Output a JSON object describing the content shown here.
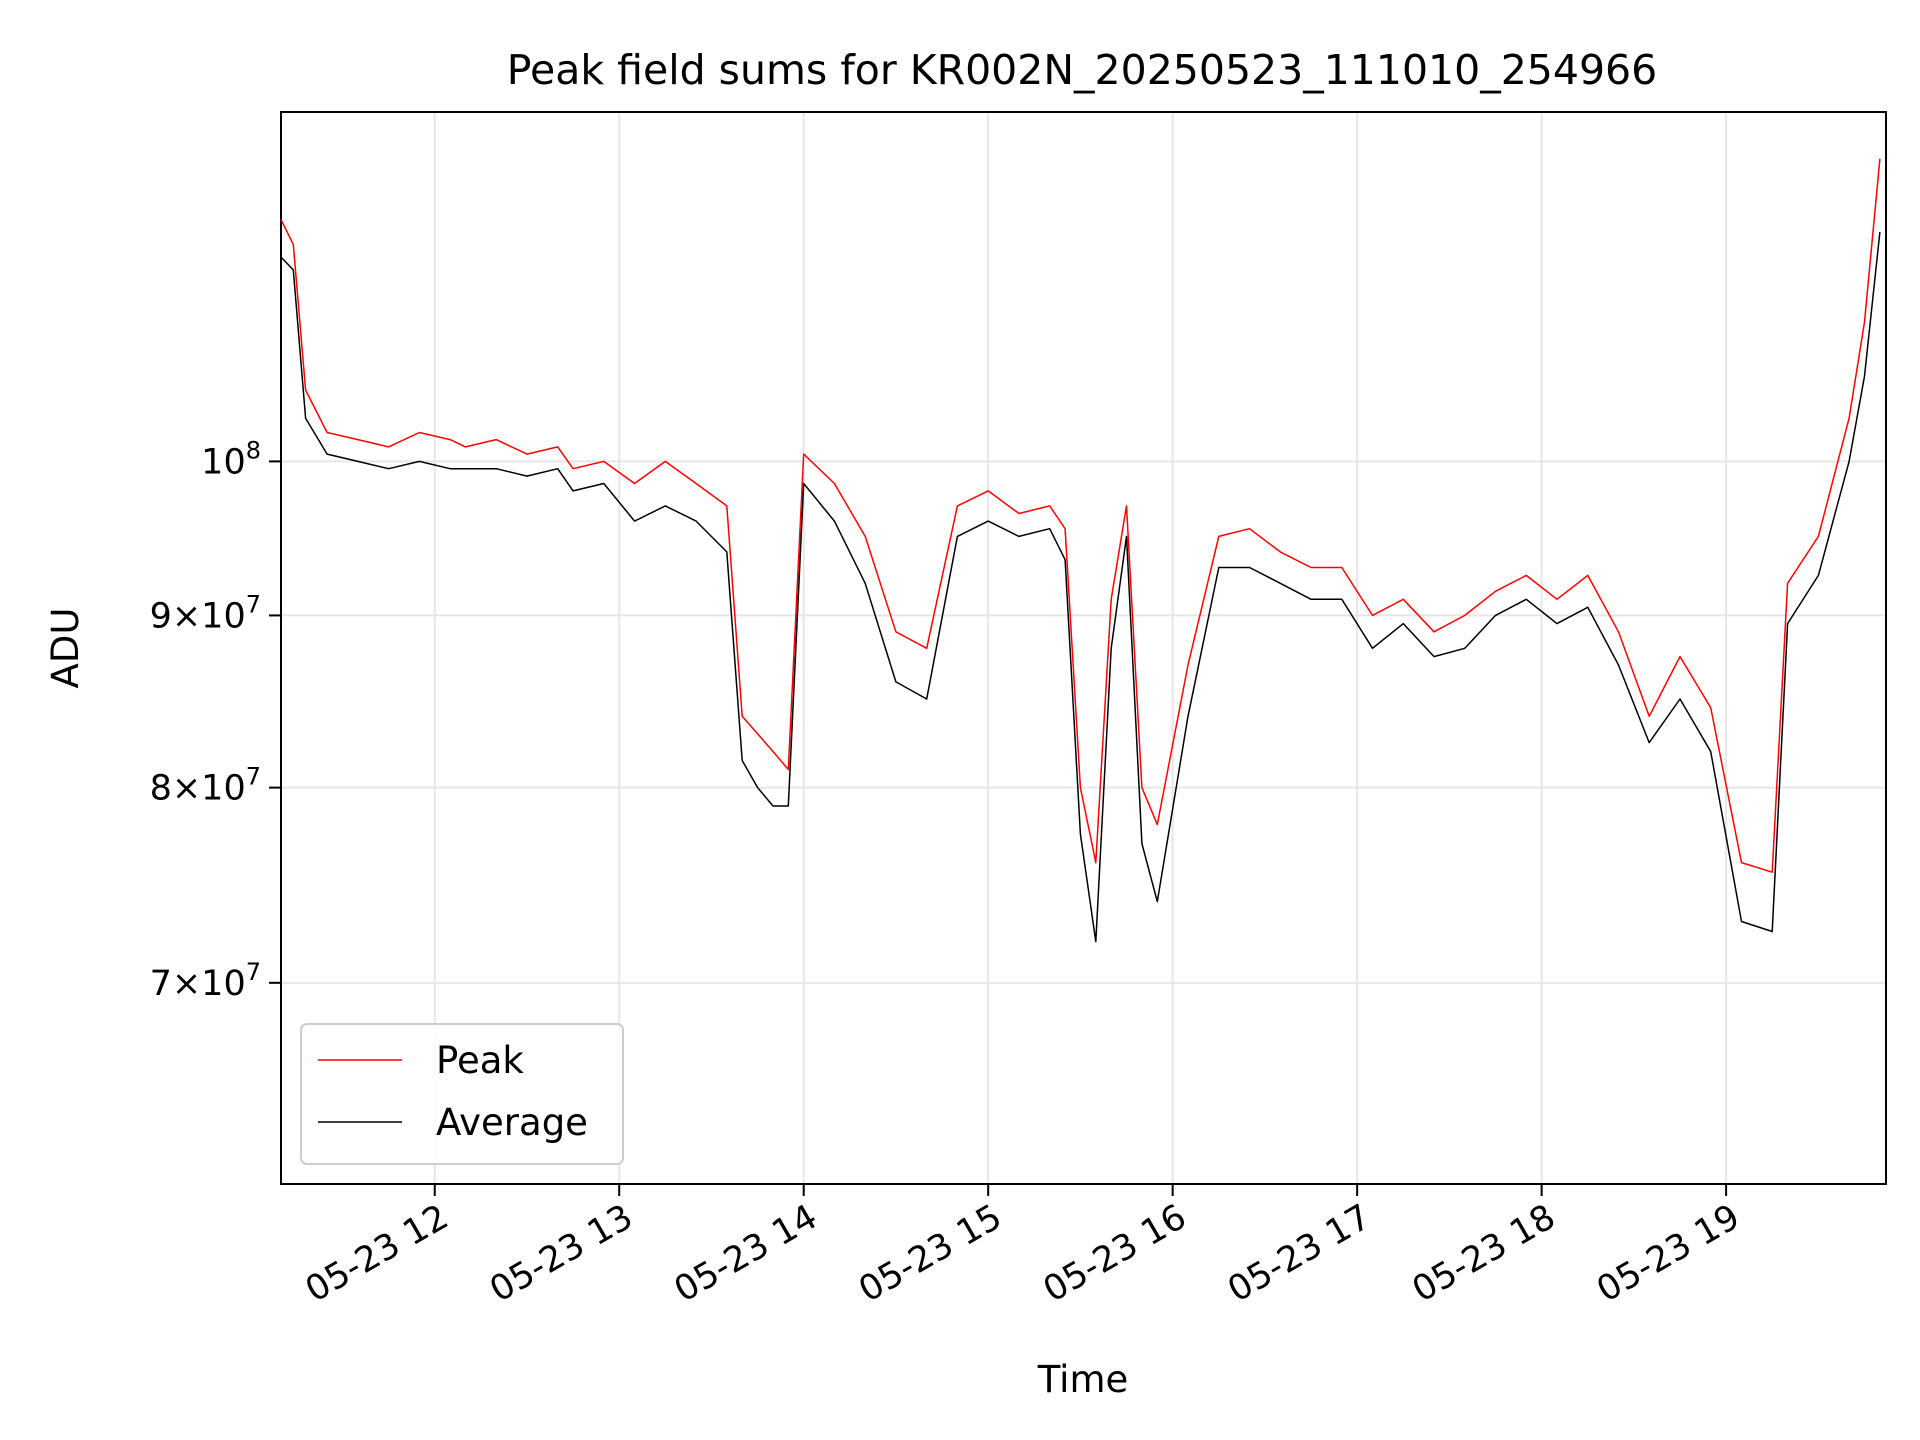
{
  "chart_data": {
    "type": "line",
    "title": "Peak field sums for KR002N_20250523_111010_254966",
    "xlabel": "Time",
    "ylabel": "ADU",
    "yscale": "log",
    "ylim": [
      61000000,
      127000000
    ],
    "xlim": [
      "05-23 11:10",
      "05-23 19:52"
    ],
    "grid": true,
    "legend_position": "lower-left",
    "x_ticks": [
      "05-23 12",
      "05-23 13",
      "05-23 14",
      "05-23 15",
      "05-23 16",
      "05-23 17",
      "05-23 18",
      "05-23 19"
    ],
    "y_ticks": [
      {
        "value": 70000000,
        "mantissa": "7",
        "exponent": "7"
      },
      {
        "value": 80000000,
        "mantissa": "8",
        "exponent": "7"
      },
      {
        "value": 90000000,
        "mantissa": "9",
        "exponent": "7"
      },
      {
        "value": 100000000,
        "mantissa": "",
        "exponent": "8"
      }
    ],
    "series": [
      {
        "name": "Peak",
        "color": "#ff0000",
        "x": [
          "05-23 11:10",
          "05-23 11:14",
          "05-23 11:18",
          "05-23 11:25",
          "05-23 11:35",
          "05-23 11:45",
          "05-23 11:55",
          "05-23 12:05",
          "05-23 12:10",
          "05-23 12:20",
          "05-23 12:30",
          "05-23 12:40",
          "05-23 12:45",
          "05-23 12:55",
          "05-23 13:05",
          "05-23 13:15",
          "05-23 13:25",
          "05-23 13:35",
          "05-23 13:40",
          "05-23 13:45",
          "05-23 13:50",
          "05-23 13:55",
          "05-23 14:00",
          "05-23 14:10",
          "05-23 14:20",
          "05-23 14:30",
          "05-23 14:40",
          "05-23 14:50",
          "05-23 15:00",
          "05-23 15:10",
          "05-23 15:20",
          "05-23 15:25",
          "05-23 15:30",
          "05-23 15:35",
          "05-23 15:40",
          "05-23 15:45",
          "05-23 15:50",
          "05-23 15:55",
          "05-23 16:05",
          "05-23 16:15",
          "05-23 16:25",
          "05-23 16:35",
          "05-23 16:45",
          "05-23 16:55",
          "05-23 17:05",
          "05-23 17:15",
          "05-23 17:25",
          "05-23 17:35",
          "05-23 17:45",
          "05-23 17:55",
          "05-23 18:05",
          "05-23 18:15",
          "05-23 18:25",
          "05-23 18:35",
          "05-23 18:45",
          "05-23 18:55",
          "05-23 19:05",
          "05-23 19:15",
          "05-23 19:20",
          "05-23 19:30",
          "05-23 19:40",
          "05-23 19:45",
          "05-23 19:50"
        ],
        "values": [
          118000000,
          116000000,
          105000000,
          102000000,
          101500000,
          101000000,
          102000000,
          101500000,
          101000000,
          101500000,
          100500000,
          101000000,
          99500000,
          100000000,
          98500000,
          100000000,
          98500000,
          97000000,
          84000000,
          83000000,
          82000000,
          81000000,
          100500000,
          98500000,
          95000000,
          89000000,
          88000000,
          97000000,
          98000000,
          96500000,
          97000000,
          95500000,
          80000000,
          76000000,
          91000000,
          97000000,
          80000000,
          78000000,
          87000000,
          95000000,
          95500000,
          94000000,
          93000000,
          93000000,
          90000000,
          91000000,
          89000000,
          90000000,
          91500000,
          92500000,
          91000000,
          92500000,
          89000000,
          84000000,
          87500000,
          84500000,
          76000000,
          75500000,
          92000000,
          95000000,
          103000000,
          110000000,
          123000000
        ]
      },
      {
        "name": "Average",
        "color": "#000000",
        "x": [
          "05-23 11:10",
          "05-23 11:14",
          "05-23 11:18",
          "05-23 11:25",
          "05-23 11:35",
          "05-23 11:45",
          "05-23 11:55",
          "05-23 12:05",
          "05-23 12:10",
          "05-23 12:20",
          "05-23 12:30",
          "05-23 12:40",
          "05-23 12:45",
          "05-23 12:55",
          "05-23 13:05",
          "05-23 13:15",
          "05-23 13:25",
          "05-23 13:35",
          "05-23 13:40",
          "05-23 13:45",
          "05-23 13:50",
          "05-23 13:55",
          "05-23 14:00",
          "05-23 14:10",
          "05-23 14:20",
          "05-23 14:30",
          "05-23 14:40",
          "05-23 14:50",
          "05-23 15:00",
          "05-23 15:10",
          "05-23 15:20",
          "05-23 15:25",
          "05-23 15:30",
          "05-23 15:35",
          "05-23 15:40",
          "05-23 15:45",
          "05-23 15:50",
          "05-23 15:55",
          "05-23 16:05",
          "05-23 16:15",
          "05-23 16:25",
          "05-23 16:35",
          "05-23 16:45",
          "05-23 16:55",
          "05-23 17:05",
          "05-23 17:15",
          "05-23 17:25",
          "05-23 17:35",
          "05-23 17:45",
          "05-23 17:55",
          "05-23 18:05",
          "05-23 18:15",
          "05-23 18:25",
          "05-23 18:35",
          "05-23 18:45",
          "05-23 18:55",
          "05-23 19:05",
          "05-23 19:15",
          "05-23 19:20",
          "05-23 19:30",
          "05-23 19:40",
          "05-23 19:45",
          "05-23 19:50"
        ],
        "values": [
          115000000,
          114000000,
          103000000,
          100500000,
          100000000,
          99500000,
          100000000,
          99500000,
          99500000,
          99500000,
          99000000,
          99500000,
          98000000,
          98500000,
          96000000,
          97000000,
          96000000,
          94000000,
          81500000,
          80000000,
          79000000,
          79000000,
          98500000,
          96000000,
          92000000,
          86000000,
          85000000,
          95000000,
          96000000,
          95000000,
          95500000,
          93500000,
          77500000,
          72000000,
          88000000,
          95000000,
          77000000,
          74000000,
          84000000,
          93000000,
          93000000,
          92000000,
          91000000,
          91000000,
          88000000,
          89500000,
          87500000,
          88000000,
          90000000,
          91000000,
          89500000,
          90500000,
          87000000,
          82500000,
          85000000,
          82000000,
          73000000,
          72500000,
          89500000,
          92500000,
          100000000,
          106000000,
          117000000
        ]
      }
    ]
  }
}
